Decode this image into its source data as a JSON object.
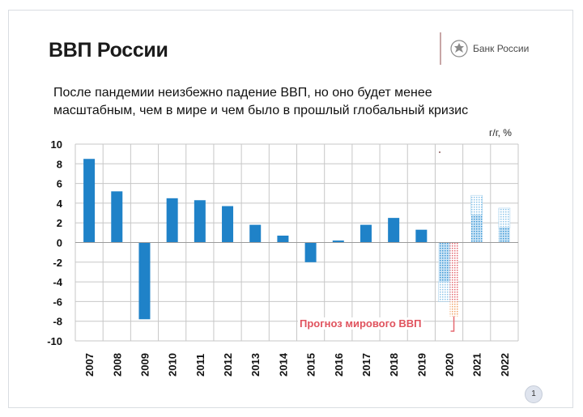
{
  "header": {
    "title": "ВВП России",
    "brand": "Банк России"
  },
  "subtitle": "После пандемии неизбежно падение ВВП, но оно будет менее масштабным, чем в мире и чем было в прошлый глобальный кризис",
  "page_number": "1",
  "colors": {
    "bar": "#1f82c8",
    "forecast_russia": "#5da9dd",
    "forecast_world": "#e56a72",
    "grid": "#c7c7c7",
    "label": "#e0535e"
  },
  "chart_data": {
    "type": "bar",
    "ylabel": "г/г, %",
    "ylim": [
      -10,
      10
    ],
    "yticks": [
      -10,
      -8,
      -6,
      -4,
      -2,
      0,
      2,
      4,
      6,
      8,
      10
    ],
    "grid": true,
    "categories": [
      "2007",
      "2008",
      "2009",
      "2010",
      "2011",
      "2012",
      "2013",
      "2014",
      "2015",
      "2016",
      "2017",
      "2018",
      "2019",
      "2020",
      "2021",
      "2022"
    ],
    "series": [
      {
        "values": [
          8.5,
          5.2,
          -7.8,
          4.5,
          4.3,
          3.7,
          1.8,
          0.7,
          -2.0,
          0.2,
          1.8,
          2.5,
          1.3,
          null,
          null,
          null
        ]
      }
    ],
    "forecast_russia": [
      {
        "category": "2020",
        "low": -6.0,
        "high": -4.0
      },
      {
        "category": "2021",
        "low": 2.8,
        "high": 4.8
      },
      {
        "category": "2022",
        "low": 1.5,
        "high": 3.5
      }
    ],
    "forecast_world": {
      "name": "Прогноз мирового ВВП",
      "category": "2020",
      "low": -7.5,
      "high": 0
    }
  }
}
